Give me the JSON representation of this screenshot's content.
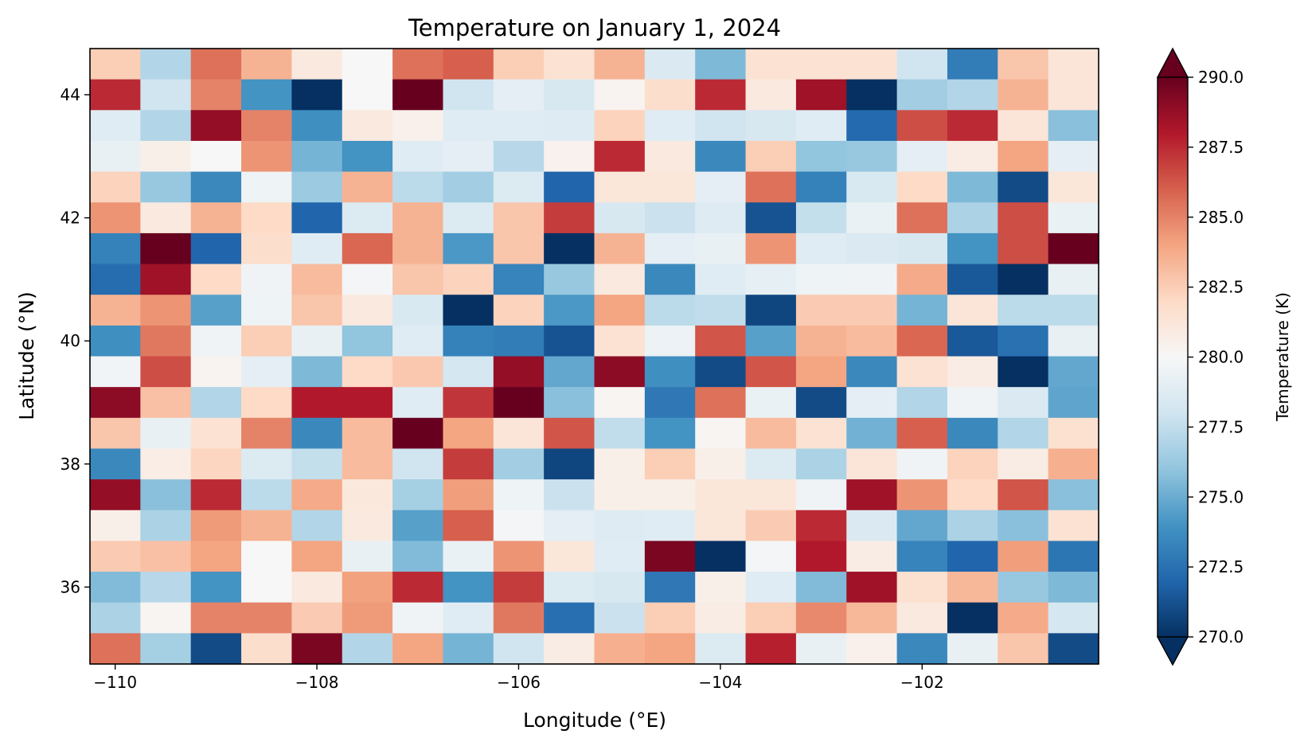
{
  "chart_data": {
    "type": "heatmap",
    "title": "Temperature on January 1, 2024",
    "xlabel": "Longitude (°E)",
    "ylabel": "Latitude (°N)",
    "colorbar_label": "Temperature (K)",
    "colormap": "RdBu_r",
    "vmin": 270,
    "vmax": 290,
    "colorbar_extend": "both",
    "colorbar_ticks": [
      "270.0",
      "272.5",
      "275.0",
      "277.5",
      "280.0",
      "282.5",
      "285.0",
      "287.5",
      "290.0"
    ],
    "colorbar_tick_values": [
      270,
      272.5,
      275,
      277.5,
      280,
      282.5,
      285,
      287.5,
      290
    ],
    "xlim": [
      -110.25,
      -100.25
    ],
    "ylim": [
      34.75,
      44.75
    ],
    "x_ticks": [
      -110,
      -108,
      -106,
      -104,
      -102
    ],
    "x_tick_labels": [
      "−110",
      "−108",
      "−106",
      "−104",
      "−102"
    ],
    "y_ticks": [
      36,
      38,
      40,
      42,
      44
    ],
    "y_tick_labels": [
      "36",
      "38",
      "40",
      "42",
      "44"
    ],
    "lon": [
      -110,
      -109.5,
      -109,
      -108.5,
      -108,
      -107.5,
      -107,
      -106.5,
      -106,
      -105.5,
      -105,
      -104.5,
      -104,
      -103.5,
      -103,
      -102.5,
      -102,
      -101.5,
      -101,
      -100.5
    ],
    "lat": [
      44.5,
      44,
      43.5,
      43,
      42.5,
      42,
      41.5,
      41,
      40.5,
      40,
      39.5,
      39,
      38.5,
      38,
      37.5,
      37,
      36.5,
      36,
      35.5,
      35
    ],
    "values": [
      [
        282.5,
        277,
        285.5,
        283.5,
        281,
        280,
        285.5,
        286,
        282.5,
        281.5,
        283.5,
        278.5,
        275.5,
        281.5,
        281.5,
        281.5,
        278,
        273,
        282.8,
        281.3
      ],
      [
        287.5,
        278,
        285,
        274,
        270,
        280,
        290,
        278,
        279,
        278.3,
        280.3,
        281.8,
        287.5,
        281,
        288.5,
        270,
        276.5,
        277,
        283.5,
        281.3
      ],
      [
        278.8,
        277,
        288.8,
        285,
        273.8,
        281,
        280.5,
        278.8,
        278.8,
        278.7,
        282.3,
        278.8,
        278,
        278.3,
        278.8,
        272.2,
        286.5,
        287.5,
        281.3,
        275.8
      ],
      [
        279.2,
        280.6,
        280,
        284.5,
        275.3,
        274,
        278.8,
        279,
        277.2,
        280.4,
        287.5,
        281,
        273.5,
        282.5,
        276,
        276.2,
        279,
        280.8,
        284,
        279
      ],
      [
        282.3,
        276.2,
        273.5,
        279.5,
        276.3,
        283.5,
        277.3,
        276.5,
        278.6,
        272,
        281.2,
        281.2,
        279,
        285.5,
        273.2,
        278.4,
        282,
        275.5,
        271,
        281.2
      ],
      [
        284.5,
        281,
        283.5,
        282,
        272,
        278.6,
        283.5,
        278.6,
        282.8,
        287,
        278.3,
        277.8,
        278.7,
        271.3,
        277.6,
        279.3,
        285.5,
        276.8,
        286.5,
        279.3
      ],
      [
        273.2,
        290,
        272,
        281.8,
        278.8,
        285.8,
        283.5,
        274.2,
        282.8,
        270,
        283.5,
        279,
        279.2,
        284.5,
        278.8,
        278.5,
        278.3,
        274,
        286.5,
        290
      ],
      [
        272.3,
        288.5,
        282,
        279.6,
        283.2,
        279.8,
        282.8,
        282.3,
        273.3,
        276.2,
        281,
        273.5,
        278.8,
        279.1,
        279.5,
        279.6,
        283.8,
        271.5,
        270,
        279.2
      ],
      [
        283.5,
        284.5,
        274.5,
        279.5,
        282.8,
        281,
        278.4,
        270,
        282.3,
        274.2,
        284,
        277.3,
        277.5,
        270.8,
        282.6,
        282.6,
        275.3,
        281.3,
        277.3,
        277.3
      ],
      [
        273.8,
        285.3,
        279.6,
        282.5,
        279.2,
        276,
        278.8,
        273.2,
        273,
        271.3,
        281.5,
        279.4,
        286.3,
        274.5,
        283.5,
        283.2,
        285.8,
        271.5,
        272.5,
        279.2
      ],
      [
        279.7,
        286.5,
        280.3,
        279,
        275.5,
        282,
        282.7,
        278.2,
        288.8,
        274.8,
        289,
        273.8,
        271,
        286.3,
        284,
        273.5,
        281.5,
        280.8,
        270,
        274.8
      ],
      [
        289,
        283,
        277,
        282,
        288,
        288,
        278.8,
        287.2,
        290,
        275.8,
        280.2,
        272.8,
        285.5,
        279.3,
        271,
        279,
        277,
        279.6,
        278.5,
        274.7
      ],
      [
        282.8,
        279.2,
        281.5,
        285,
        273.5,
        283.2,
        290,
        284,
        281.3,
        286.3,
        277.5,
        274,
        280.2,
        283.2,
        281.5,
        275.2,
        286,
        273.5,
        277,
        281.6
      ],
      [
        273.5,
        280.7,
        282.2,
        278.6,
        277.6,
        283.2,
        278,
        287,
        276.5,
        270.8,
        280.6,
        282.5,
        280.6,
        278.6,
        276.8,
        281.3,
        279.6,
        282.3,
        280.8,
        283.6
      ],
      [
        288.8,
        275.8,
        287.5,
        277.3,
        283.8,
        281.1,
        276.6,
        284.2,
        279.5,
        277.8,
        280.6,
        280.6,
        281.2,
        281.2,
        279.6,
        288.5,
        284.5,
        282,
        286.3,
        275.8
      ],
      [
        280.6,
        276.8,
        284.3,
        283.5,
        277,
        281,
        274.5,
        286,
        279.8,
        279,
        278.7,
        278.8,
        281.2,
        282.6,
        287.5,
        278.5,
        274.8,
        276.8,
        275.8,
        281.5
      ],
      [
        282.6,
        283,
        284,
        280,
        284,
        279.2,
        275.6,
        279.3,
        284.5,
        281.2,
        278.8,
        289.5,
        270,
        279.8,
        288,
        280.8,
        273.3,
        272,
        284.2,
        272.7
      ],
      [
        275.6,
        277.2,
        274,
        280,
        281,
        284.1,
        287.5,
        274,
        287,
        278.6,
        278.3,
        272.8,
        280.6,
        278.8,
        275.6,
        288.5,
        281.6,
        283.3,
        276.2,
        275.5
      ],
      [
        276.8,
        280.2,
        285,
        285,
        282.6,
        284.3,
        279.6,
        278.8,
        285.3,
        272.4,
        277.8,
        282.5,
        280.8,
        282.5,
        284.8,
        283.3,
        281,
        270,
        283.8,
        278.2
      ],
      [
        285.5,
        276.6,
        271,
        281.8,
        289.5,
        277,
        284,
        275.3,
        278,
        280.8,
        283.6,
        284,
        278.6,
        287.8,
        279.2,
        280.5,
        273.5,
        279.2,
        282.8,
        271
      ]
    ]
  }
}
